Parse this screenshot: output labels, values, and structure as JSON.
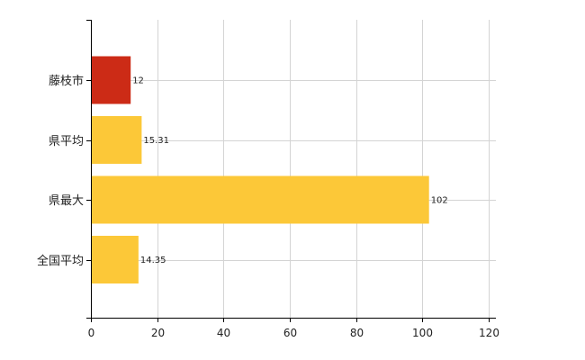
{
  "chart_data": {
    "type": "bar",
    "orientation": "horizontal",
    "categories": [
      "藤枝市",
      "県平均",
      "県最大",
      "全国平均"
    ],
    "values": [
      12,
      15.31,
      102,
      14.35
    ],
    "value_labels": [
      "12",
      "15.31",
      "102",
      "14.35"
    ],
    "bar_colors": [
      "#cc2b16",
      "#fcc838",
      "#fcc838",
      "#fcc838"
    ],
    "xlim": [
      0,
      120
    ],
    "xticks": [
      0,
      20,
      40,
      60,
      80,
      100,
      120
    ],
    "grid": true,
    "title": "",
    "xlabel": "",
    "ylabel": ""
  }
}
